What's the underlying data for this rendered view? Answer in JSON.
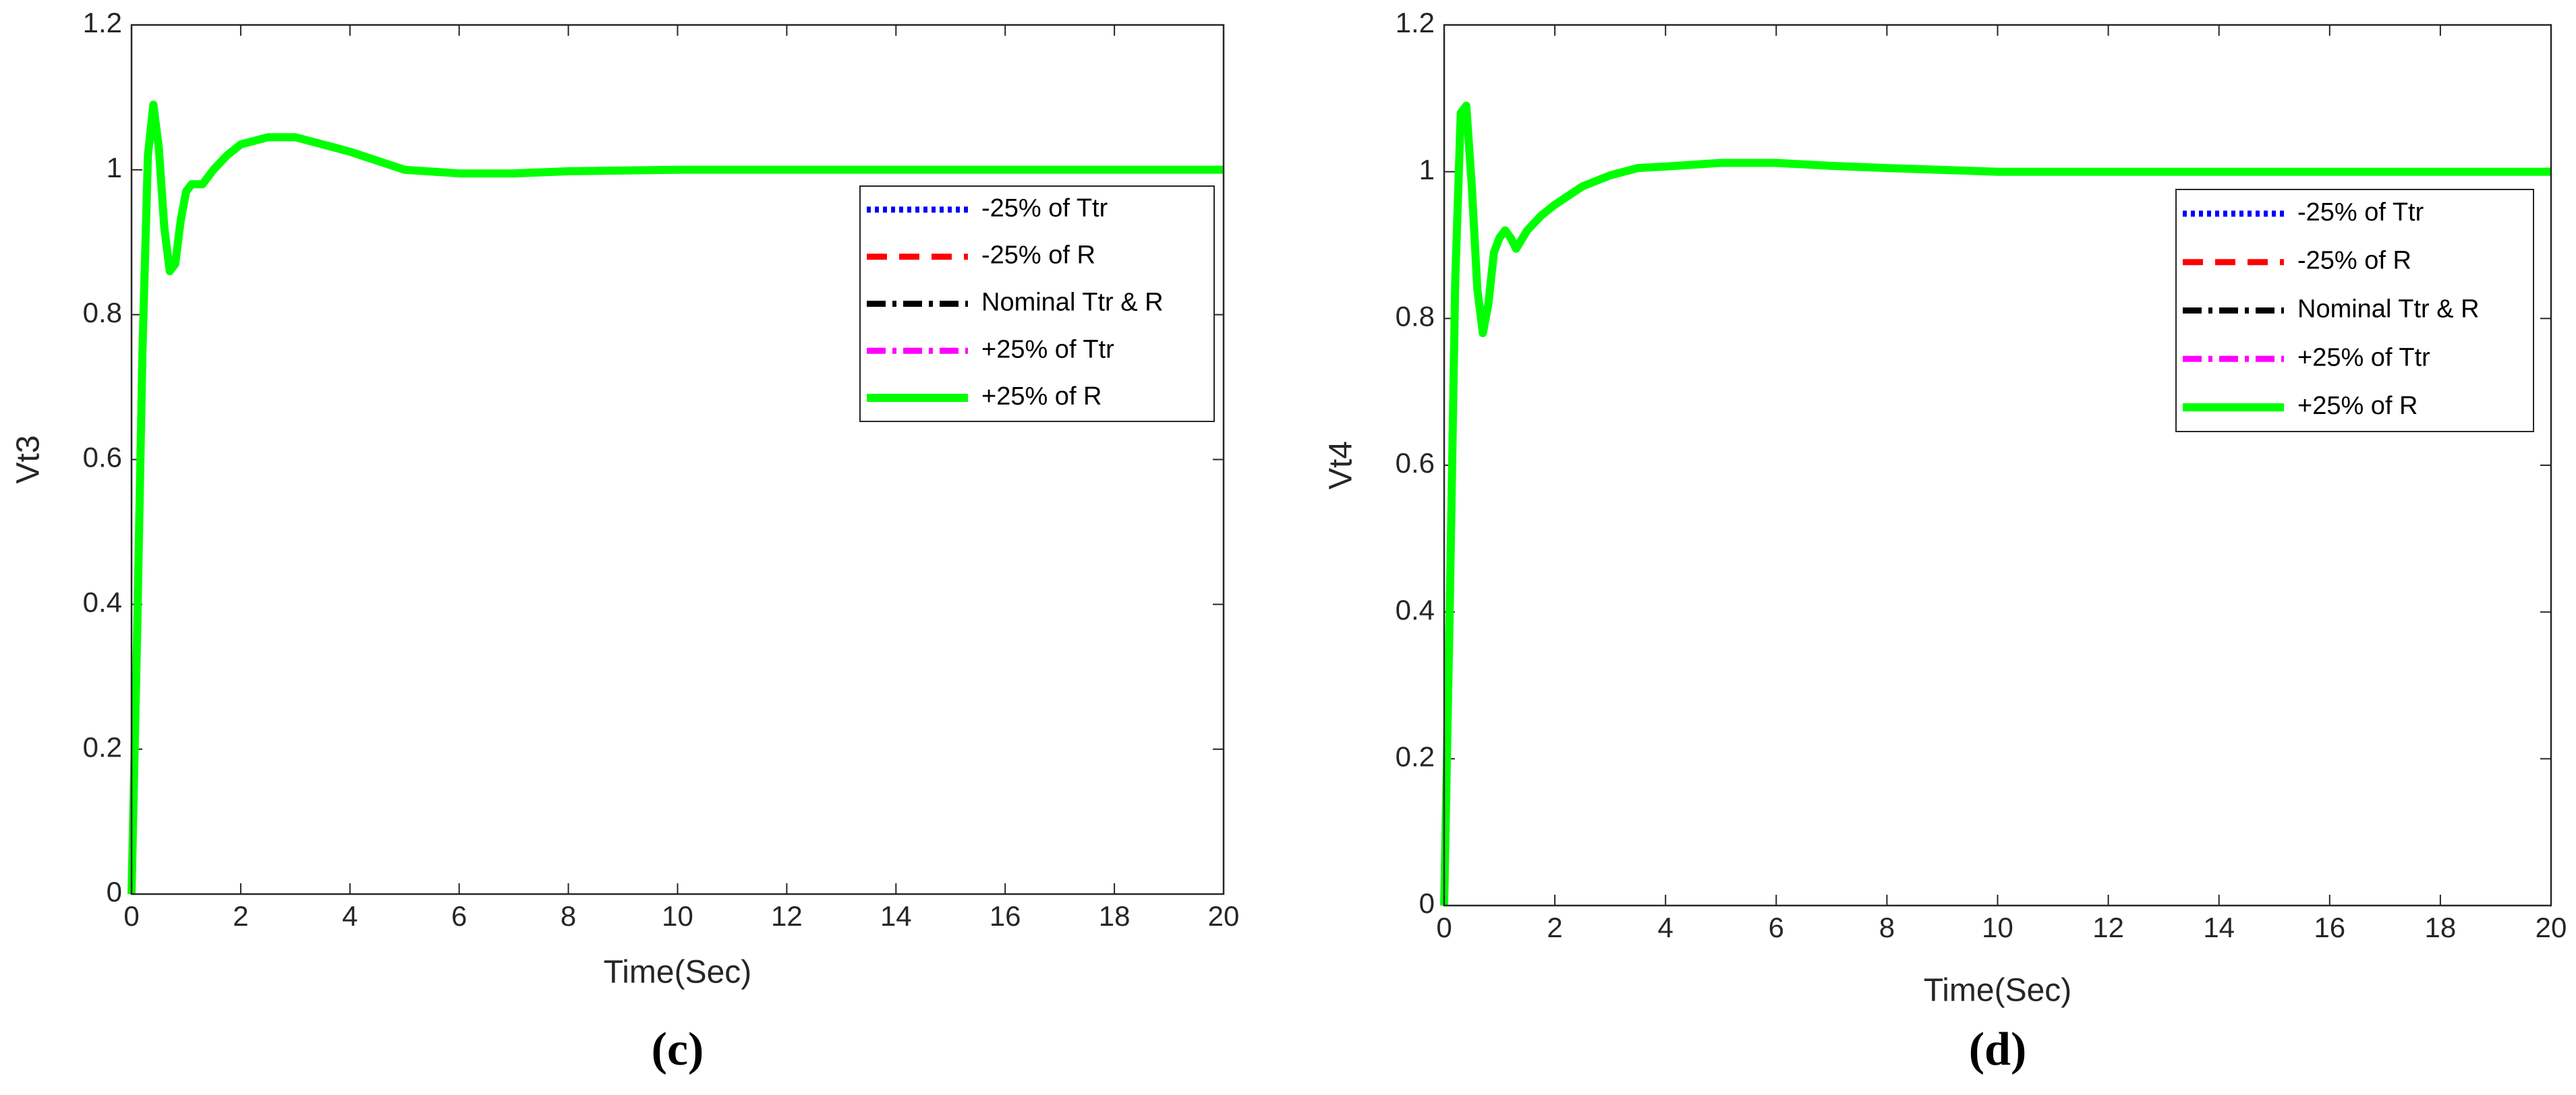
{
  "chart_data": [
    {
      "type": "line",
      "caption": "(c)",
      "xlabel": "Time(Sec)",
      "ylabel": "Vt3",
      "xlim": [
        0,
        20
      ],
      "ylim": [
        0,
        1.2
      ],
      "xticks": [
        0,
        2,
        4,
        6,
        8,
        10,
        12,
        14,
        16,
        18,
        20
      ],
      "yticks": [
        0,
        0.2,
        0.4,
        0.6,
        0.8,
        1,
        1.2
      ],
      "x": [
        0,
        0.1,
        0.2,
        0.3,
        0.4,
        0.5,
        0.6,
        0.7,
        0.8,
        0.9,
        1.0,
        1.1,
        1.2,
        1.3,
        1.5,
        1.75,
        2,
        2.5,
        3,
        3.5,
        4,
        5,
        6,
        7,
        8,
        10,
        12,
        14,
        16,
        18,
        20
      ],
      "legend": "upper right",
      "series": [
        {
          "name": "-25% of Ttr",
          "color": "#0000ff",
          "linestyle": "dotted",
          "values": [
            0,
            0.35,
            0.75,
            1.02,
            1.09,
            1.03,
            0.92,
            0.86,
            0.87,
            0.93,
            0.97,
            0.98,
            0.98,
            0.98,
            1.0,
            1.02,
            1.035,
            1.045,
            1.045,
            1.035,
            1.025,
            1.0,
            0.995,
            0.995,
            0.998,
            1.0,
            1.0,
            1.0,
            1.0,
            1.0,
            1.0
          ]
        },
        {
          "name": "-25% of R",
          "color": "#ff0000",
          "linestyle": "dashed",
          "values": [
            0,
            0.35,
            0.75,
            1.02,
            1.09,
            1.03,
            0.92,
            0.86,
            0.87,
            0.93,
            0.97,
            0.98,
            0.98,
            0.98,
            1.0,
            1.02,
            1.035,
            1.045,
            1.045,
            1.035,
            1.025,
            1.0,
            0.995,
            0.995,
            0.998,
            1.0,
            1.0,
            1.0,
            1.0,
            1.0,
            1.0
          ]
        },
        {
          "name": "Nominal Ttr & R",
          "color": "#000000",
          "linestyle": "dashdot",
          "values": [
            0,
            0.35,
            0.75,
            1.02,
            1.09,
            1.03,
            0.92,
            0.86,
            0.87,
            0.93,
            0.97,
            0.98,
            0.98,
            0.98,
            1.0,
            1.02,
            1.035,
            1.045,
            1.045,
            1.035,
            1.025,
            1.0,
            0.995,
            0.995,
            0.998,
            1.0,
            1.0,
            1.0,
            1.0,
            1.0,
            1.0
          ]
        },
        {
          "name": "+25% of Ttr",
          "color": "#ff00ff",
          "linestyle": "dashdot",
          "values": [
            0,
            0.35,
            0.75,
            1.02,
            1.09,
            1.03,
            0.92,
            0.86,
            0.87,
            0.93,
            0.97,
            0.98,
            0.98,
            0.98,
            1.0,
            1.02,
            1.035,
            1.045,
            1.045,
            1.035,
            1.025,
            1.0,
            0.995,
            0.995,
            0.998,
            1.0,
            1.0,
            1.0,
            1.0,
            1.0,
            1.0
          ]
        },
        {
          "name": "+25% of R",
          "color": "#00ff00",
          "linestyle": "solid",
          "values": [
            0,
            0.35,
            0.75,
            1.02,
            1.09,
            1.03,
            0.92,
            0.86,
            0.87,
            0.93,
            0.97,
            0.98,
            0.98,
            0.98,
            1.0,
            1.02,
            1.035,
            1.045,
            1.045,
            1.035,
            1.025,
            1.0,
            0.995,
            0.995,
            0.998,
            1.0,
            1.0,
            1.0,
            1.0,
            1.0,
            1.0
          ]
        }
      ]
    },
    {
      "type": "line",
      "caption": "(d)",
      "xlabel": "Time(Sec)",
      "ylabel": "Vt4",
      "xlim": [
        0,
        20
      ],
      "ylim": [
        0,
        1.2
      ],
      "xticks": [
        0,
        2,
        4,
        6,
        8,
        10,
        12,
        14,
        16,
        18,
        20
      ],
      "yticks": [
        0,
        0.2,
        0.4,
        0.6,
        0.8,
        1,
        1.2
      ],
      "x": [
        0,
        0.1,
        0.2,
        0.3,
        0.4,
        0.5,
        0.6,
        0.7,
        0.8,
        0.9,
        1.0,
        1.1,
        1.2,
        1.3,
        1.5,
        1.75,
        2,
        2.5,
        3,
        3.5,
        4,
        5,
        6,
        7,
        8,
        10,
        12,
        14,
        16,
        18,
        20
      ],
      "legend": "upper right",
      "series": [
        {
          "name": "-25% of Ttr",
          "color": "#0000ff",
          "linestyle": "dotted",
          "values": [
            0,
            0.4,
            0.85,
            1.08,
            1.09,
            0.98,
            0.84,
            0.78,
            0.82,
            0.89,
            0.91,
            0.92,
            0.91,
            0.895,
            0.92,
            0.94,
            0.955,
            0.98,
            0.995,
            1.005,
            1.007,
            1.012,
            1.012,
            1.008,
            1.005,
            1.0,
            1.0,
            1.0,
            1.0,
            1.0,
            1.0
          ]
        },
        {
          "name": "-25% of R",
          "color": "#ff0000",
          "linestyle": "dashed",
          "values": [
            0,
            0.4,
            0.85,
            1.08,
            1.09,
            0.98,
            0.84,
            0.78,
            0.82,
            0.89,
            0.91,
            0.92,
            0.91,
            0.895,
            0.92,
            0.94,
            0.955,
            0.98,
            0.995,
            1.005,
            1.007,
            1.012,
            1.012,
            1.008,
            1.005,
            1.0,
            1.0,
            1.0,
            1.0,
            1.0,
            1.0
          ]
        },
        {
          "name": "Nominal Ttr & R",
          "color": "#000000",
          "linestyle": "dashdot",
          "values": [
            0,
            0.4,
            0.85,
            1.08,
            1.09,
            0.98,
            0.84,
            0.78,
            0.82,
            0.89,
            0.91,
            0.92,
            0.91,
            0.895,
            0.92,
            0.94,
            0.955,
            0.98,
            0.995,
            1.005,
            1.007,
            1.012,
            1.012,
            1.008,
            1.005,
            1.0,
            1.0,
            1.0,
            1.0,
            1.0,
            1.0
          ]
        },
        {
          "name": "+25% of Ttr",
          "color": "#ff00ff",
          "linestyle": "dashdot",
          "values": [
            0,
            0.4,
            0.85,
            1.08,
            1.09,
            0.98,
            0.84,
            0.78,
            0.82,
            0.89,
            0.91,
            0.92,
            0.91,
            0.895,
            0.92,
            0.94,
            0.955,
            0.98,
            0.995,
            1.005,
            1.007,
            1.012,
            1.012,
            1.008,
            1.005,
            1.0,
            1.0,
            1.0,
            1.0,
            1.0,
            1.0
          ]
        },
        {
          "name": "+25% of R",
          "color": "#00ff00",
          "linestyle": "solid",
          "values": [
            0,
            0.4,
            0.85,
            1.08,
            1.09,
            0.98,
            0.84,
            0.78,
            0.82,
            0.89,
            0.91,
            0.92,
            0.91,
            0.895,
            0.92,
            0.94,
            0.955,
            0.98,
            0.995,
            1.005,
            1.007,
            1.012,
            1.012,
            1.008,
            1.005,
            1.0,
            1.0,
            1.0,
            1.0,
            1.0,
            1.0
          ]
        }
      ]
    }
  ]
}
